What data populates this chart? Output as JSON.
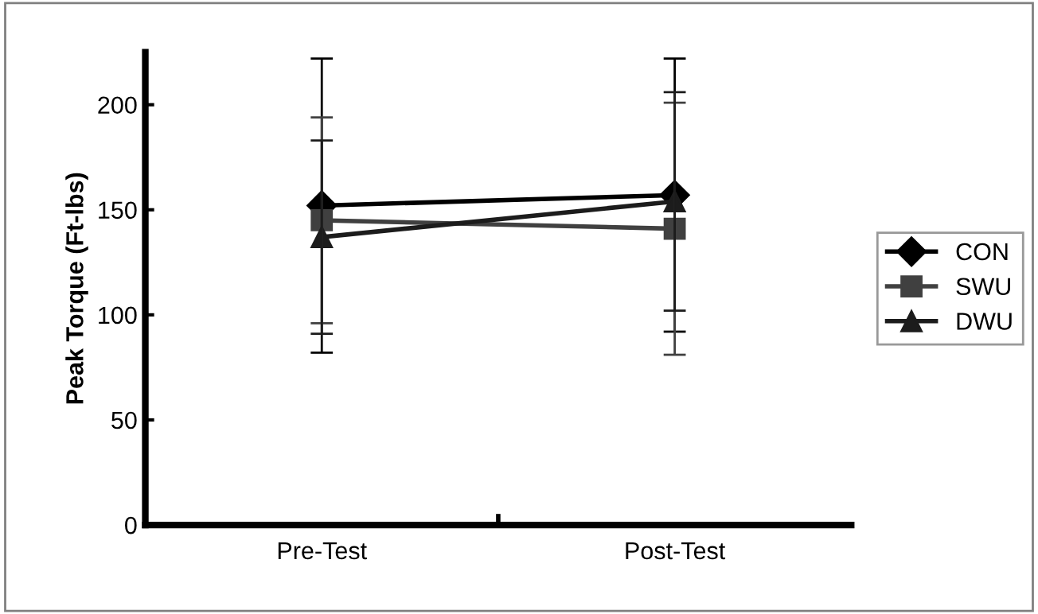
{
  "chart_data": {
    "type": "line",
    "ylabel": "Peak Torque (Ft-lbs)",
    "categories": [
      "Pre-Test",
      "Post-Test"
    ],
    "series": [
      {
        "name": "CON",
        "color": "#000000",
        "marker": "diamond",
        "values": [
          152,
          157
        ],
        "errors": [
          70,
          65
        ]
      },
      {
        "name": "SWU",
        "color": "#404040",
        "marker": "square",
        "values": [
          145,
          141
        ],
        "errors": [
          49,
          60
        ]
      },
      {
        "name": "DWU",
        "color": "#1c1c1c",
        "marker": "triangle",
        "values": [
          137,
          154
        ],
        "errors": [
          46,
          52
        ]
      }
    ],
    "ylim": [
      0,
      225
    ],
    "yticks": [
      0,
      50,
      100,
      150,
      200
    ],
    "grid": false,
    "legend": "right",
    "line_style": "solid"
  }
}
